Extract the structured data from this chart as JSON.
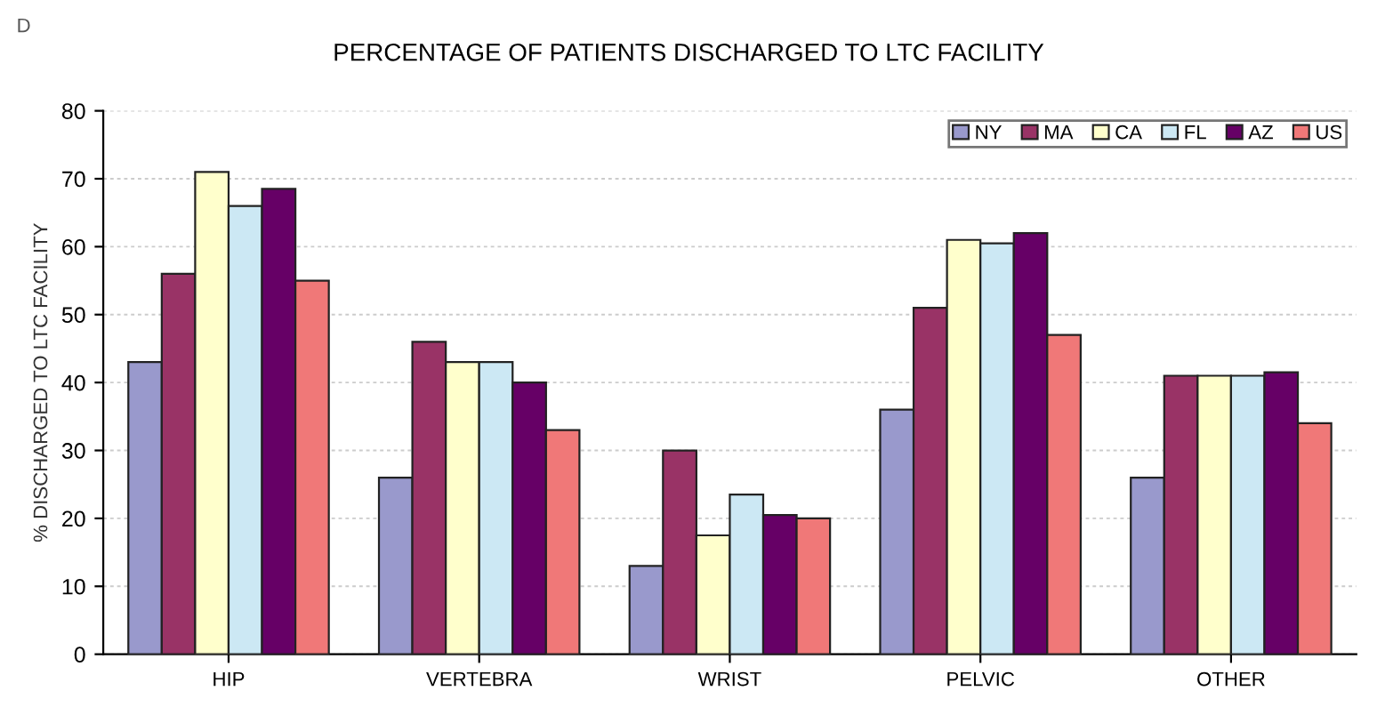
{
  "chart_data": {
    "type": "bar",
    "title": "PERCENTAGE OF PATIENTS DISCHARGED TO LTC FACILITY",
    "ylabel": "% DISCHARGED TO LTC FACILITY",
    "annotations": [
      "D"
    ],
    "categories": [
      "HIP",
      "VERTEBRA",
      "WRIST",
      "PELVIC",
      "OTHER"
    ],
    "series": [
      {
        "name": "NY",
        "color": "#9999cc",
        "values": [
          43,
          26,
          13,
          36,
          26
        ]
      },
      {
        "name": "MA",
        "color": "#993366",
        "values": [
          56,
          46,
          30,
          51,
          41
        ]
      },
      {
        "name": "CA",
        "color": "#ffffcc",
        "values": [
          71,
          43,
          17.5,
          61,
          41
        ]
      },
      {
        "name": "FL",
        "color": "#cce8f4",
        "values": [
          66,
          43,
          23.5,
          60.5,
          41
        ]
      },
      {
        "name": "AZ",
        "color": "#660066",
        "values": [
          68.5,
          40,
          20.5,
          62,
          41.5
        ]
      },
      {
        "name": "US",
        "color": "#f07878",
        "values": [
          55,
          33,
          20,
          47,
          34
        ]
      }
    ],
    "ylim": [
      0,
      80
    ],
    "yticks": [
      0,
      10,
      20,
      30,
      40,
      50,
      60,
      70,
      80
    ],
    "grid": "y",
    "legend": "top right"
  }
}
